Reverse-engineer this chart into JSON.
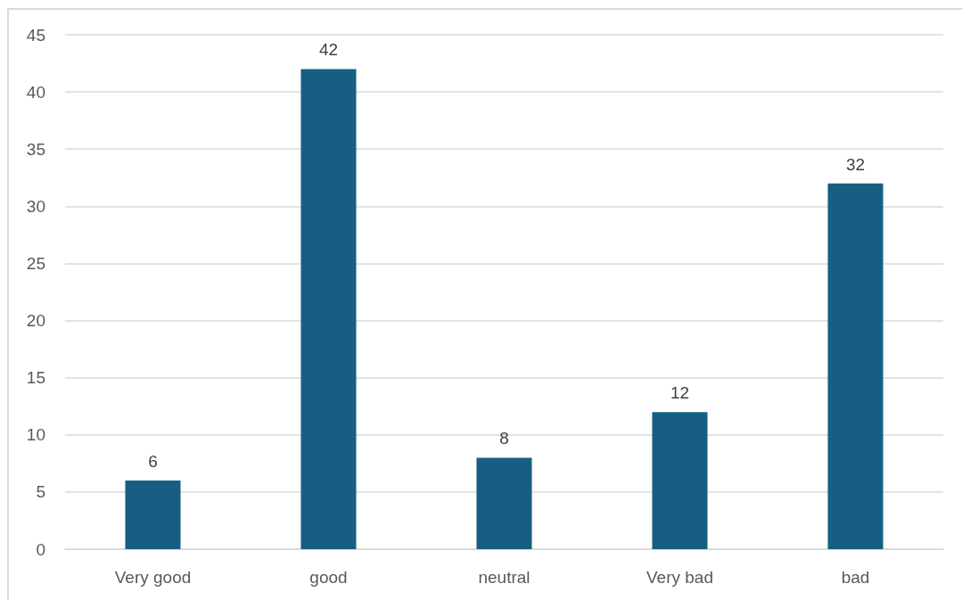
{
  "chart_data": {
    "type": "bar",
    "categories": [
      "Very good",
      "good",
      "neutral",
      "Very bad",
      "bad"
    ],
    "values": [
      6,
      42,
      8,
      12,
      32
    ],
    "color": "#175f82",
    "ylim": [
      0,
      45
    ],
    "yticks": [
      0,
      5,
      10,
      15,
      20,
      25,
      30,
      35,
      40,
      45
    ],
    "grid": "y",
    "data_labels": true
  }
}
